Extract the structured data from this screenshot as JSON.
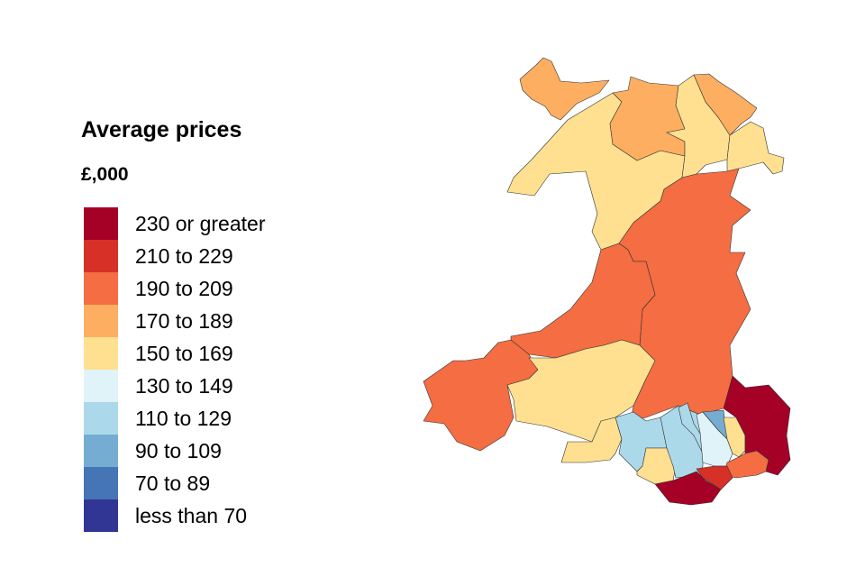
{
  "legend": {
    "title": "Average prices",
    "subtitle": "£,000",
    "items": [
      {
        "label": "230 or greater",
        "color": "#a50026"
      },
      {
        "label": "210 to 229",
        "color": "#d73027"
      },
      {
        "label": "190 to 209",
        "color": "#f46d43"
      },
      {
        "label": "170 to 189",
        "color": "#fdae61"
      },
      {
        "label": "150 to 169",
        "color": "#fee090"
      },
      {
        "label": "130 to 149",
        "color": "#e0f3f8"
      },
      {
        "label": "110 to 129",
        "color": "#abd9e9"
      },
      {
        "label": "90 to 109",
        "color": "#74add1"
      },
      {
        "label": "70 to 89",
        "color": "#4575b4"
      },
      {
        "label": "less than 70",
        "color": "#313695"
      }
    ]
  },
  "map_regions": {
    "anglesey": "170 to 189",
    "gwynedd": "150 to 169",
    "conwy": "170 to 189",
    "denbighshire": "150 to 169",
    "flintshire": "170 to 189",
    "wrexham": "150 to 169",
    "powys": "190 to 209",
    "ceredigion": "190 to 209",
    "pembrokeshire": "190 to 209",
    "carmarthenshire": "150 to 169",
    "swansea": "150 to 169",
    "neath-port-talbot": "110 to 129",
    "bridgend": "150 to 169",
    "rhondda-cynon-taf": "110 to 129",
    "merthyr-tydfil": "110 to 129",
    "caerphilly": "130 to 149",
    "blaenau-gwent": "90 to 109",
    "torfaen": "150 to 169",
    "monmouthshire": "230 or greater",
    "newport": "190 to 209",
    "cardiff": "210 to 229",
    "vale-of-glamorgan": "230 or greater"
  }
}
